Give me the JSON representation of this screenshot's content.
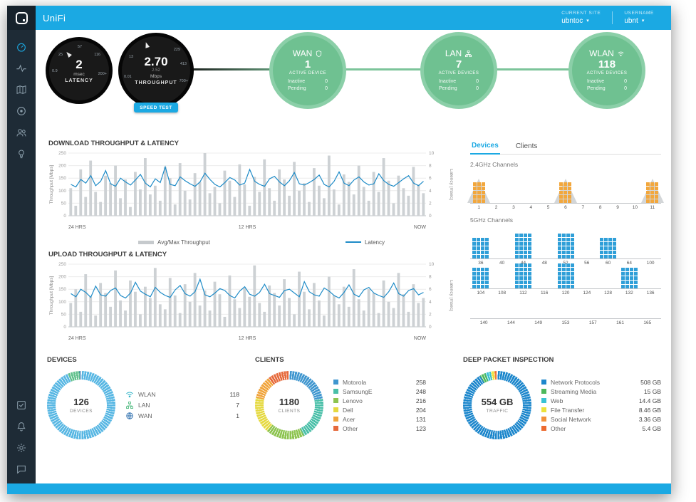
{
  "accent": "#1ba9e3",
  "topbar": {
    "brand": "UniFi",
    "current_site": {
      "label": "CURRENT SITE",
      "value": "ubntoc"
    },
    "username": {
      "label": "USERNAME",
      "value": "ubnt"
    }
  },
  "sidebar": {
    "top_icons": [
      "dashboard",
      "statistics",
      "map",
      "devices",
      "clients",
      "insights"
    ],
    "bottom_icons": [
      "events",
      "alerts",
      "settings",
      "chat"
    ]
  },
  "gauges": {
    "latency": {
      "value": "2",
      "unit": "msec",
      "label": "LATENCY",
      "ticks": [
        "0.9",
        "25",
        "57",
        "116",
        "200+"
      ]
    },
    "throughput": {
      "value": "2.70",
      "secondary": "2.52",
      "unit": "Mbps",
      "label": "THROUGHPUT",
      "ticks": [
        "0.01",
        "13",
        "229",
        "413",
        "700+"
      ],
      "speed_test_label": "SPEED TEST"
    }
  },
  "status_circles": [
    {
      "name": "WAN",
      "icon": "shield-icon",
      "count": "1",
      "count_label": "ACTIVE DEVICE",
      "inactive_label": "Inactive",
      "inactive_value": "0",
      "pending_label": "Pending",
      "pending_value": "0"
    },
    {
      "name": "LAN",
      "icon": "lan-icon",
      "count": "7",
      "count_label": "ACTIVE DEVICES",
      "inactive_label": "Inactive",
      "inactive_value": "0",
      "pending_label": "Pending",
      "pending_value": "0"
    },
    {
      "name": "WLAN",
      "icon": "wifi-icon",
      "count": "118",
      "count_label": "ACTIVE DEVICES",
      "inactive_label": "Inactive",
      "inactive_value": "0",
      "pending_label": "Pending",
      "pending_value": "0"
    }
  ],
  "charts": {
    "download_title": "DOWNLOAD THROUGHPUT & LATENCY",
    "upload_title": "UPLOAD THROUGHPUT & LATENCY",
    "legend": [
      {
        "label": "Avg/Max Throughput",
        "color": "#c6cacd"
      },
      {
        "label": "Latency",
        "color": "#1e8bc7"
      }
    ]
  },
  "chart_data": [
    {
      "type": "line",
      "name": "download",
      "title": "DOWNLOAD THROUGHPUT & LATENCY",
      "xlabel_ticks": [
        "24 HRS",
        "12 HRS",
        "NOW"
      ],
      "ylabel_left": "Throughput [Mbps]",
      "ylabel_right": "Latency [msec]",
      "ylim_left": [
        0,
        250
      ],
      "ylim_right": [
        0,
        10
      ],
      "series": [
        {
          "name": "Avg/Max Throughput",
          "unit": "Mbps",
          "values": [
            110,
            40,
            185,
            75,
            220,
            95,
            55,
            160,
            130,
            200,
            70,
            145,
            35,
            175,
            105,
            230,
            85,
            120,
            60,
            195,
            150,
            45,
            210,
            100,
            65,
            170,
            135,
            250,
            90,
            115,
            50,
            180,
            140,
            75,
            205,
            125,
            40,
            155,
            95,
            225,
            110,
            60,
            185,
            145,
            80,
            215,
            100,
            130,
            55,
            190,
            120,
            70,
            240,
            105,
            45,
            165,
            135,
            85,
            200,
            115,
            60,
            175,
            95,
            230,
            140,
            50,
            160,
            110,
            80,
            195,
            125,
            90
          ]
        },
        {
          "name": "Latency",
          "unit": "msec",
          "values": [
            5.0,
            4.6,
            5.8,
            5.2,
            6.4,
            4.8,
            5.5,
            7.2,
            5.1,
            4.7,
            6.0,
            5.4,
            4.9,
            5.7,
            6.6,
            5.2,
            4.6,
            5.9,
            5.3,
            7.8,
            5.0,
            4.8,
            6.2,
            5.6,
            5.1,
            4.7,
            5.4,
            6.8,
            5.8,
            5.0,
            4.6,
            5.3,
            6.1,
            5.7,
            4.9,
            5.2,
            7.4,
            5.5,
            5.0,
            4.7,
            5.9,
            6.3,
            5.4,
            4.8,
            5.6,
            6.9,
            5.1,
            4.9,
            5.3,
            5.8,
            6.5,
            5.0,
            4.6,
            5.5,
            7.0,
            5.2,
            4.8,
            5.7,
            6.2,
            5.4,
            4.9,
            5.1,
            6.7,
            5.6,
            5.0,
            4.7,
            5.3,
            5.9,
            6.4,
            5.2,
            4.8,
            5.5
          ]
        }
      ]
    },
    {
      "type": "line",
      "name": "upload",
      "title": "UPLOAD THROUGHPUT & LATENCY",
      "xlabel_ticks": [
        "24 HRS",
        "12 HRS",
        "NOW"
      ],
      "ylabel_left": "Throughput [Mbps]",
      "ylabel_right": "Latency [msec]",
      "ylim_left": [
        0,
        250
      ],
      "ylim_right": [
        0,
        10
      ],
      "series": [
        {
          "name": "Avg/Max Throughput",
          "unit": "Mbps",
          "values": [
            95,
            150,
            60,
            210,
            120,
            45,
            175,
            135,
            80,
            225,
            105,
            65,
            185,
            140,
            50,
            160,
            115,
            235,
            90,
            70,
            195,
            125,
            55,
            170,
            100,
            215,
            85,
            145,
            65,
            180,
            130,
            40,
            205,
            110,
            75,
            155,
            120,
            245,
            95,
            60,
            165,
            135,
            85,
            190,
            115,
            50,
            220,
            140,
            70,
            175,
            105,
            45,
            200,
            125,
            90,
            160,
            80,
            230,
            110,
            65,
            150,
            135,
            55,
            185,
            100,
            75,
            215,
            130,
            60,
            170,
            95,
            115
          ]
        },
        {
          "name": "Latency",
          "unit": "msec",
          "values": [
            5.3,
            4.8,
            6.0,
            5.5,
            4.7,
            6.5,
            5.1,
            4.9,
            5.8,
            6.2,
            5.0,
            4.6,
            5.4,
            7.1,
            5.7,
            5.2,
            4.8,
            6.3,
            5.5,
            5.0,
            4.7,
            5.9,
            6.6,
            5.3,
            4.9,
            5.6,
            7.6,
            5.1,
            4.8,
            5.4,
            6.1,
            5.8,
            5.0,
            4.6,
            5.7,
            6.4,
            5.2,
            4.9,
            5.5,
            6.8,
            5.3,
            5.0,
            4.7,
            5.8,
            6.0,
            5.4,
            4.8,
            7.2,
            5.6,
            5.1,
            4.9,
            6.2,
            5.7,
            5.0,
            4.6,
            5.5,
            6.7,
            5.2,
            4.8,
            5.9,
            6.3,
            5.4,
            5.0,
            4.7,
            5.6,
            7.0,
            5.3,
            4.9,
            5.8,
            6.1,
            5.1,
            5.5
          ]
        }
      ]
    }
  ],
  "channels": {
    "tabs": [
      {
        "label": "Devices",
        "active": true
      },
      {
        "label": "Clients",
        "active": false
      }
    ],
    "band24_label": "2.4GHz Channels",
    "band5_label": "5GHz Channels",
    "band24": {
      "color": "#f2a73d",
      "cols": 3,
      "channels": [
        {
          "ch": "1",
          "value": 5,
          "interference": true
        },
        {
          "ch": "2",
          "value": 0
        },
        {
          "ch": "3",
          "value": 0
        },
        {
          "ch": "4",
          "value": 0
        },
        {
          "ch": "5",
          "value": 0
        },
        {
          "ch": "6",
          "value": 5,
          "interference": true
        },
        {
          "ch": "7",
          "value": 0
        },
        {
          "ch": "8",
          "value": 0
        },
        {
          "ch": "9",
          "value": 0
        },
        {
          "ch": "10",
          "value": 0
        },
        {
          "ch": "11",
          "value": 5,
          "interference": true
        }
      ]
    },
    "band5_rows": [
      {
        "color": "#2f9fd8",
        "cols": 4,
        "channels": [
          {
            "ch": "36",
            "value": 5
          },
          {
            "ch": "40",
            "value": 0
          },
          {
            "ch": "44",
            "value": 6
          },
          {
            "ch": "48",
            "value": 0
          },
          {
            "ch": "52",
            "value": 6
          },
          {
            "ch": "56",
            "value": 0
          },
          {
            "ch": "60",
            "value": 5
          },
          {
            "ch": "64",
            "value": 0
          },
          {
            "ch": "100",
            "value": 0
          }
        ]
      },
      {
        "color": "#2f9fd8",
        "cols": 4,
        "channels": [
          {
            "ch": "104",
            "value": 5
          },
          {
            "ch": "108",
            "value": 0
          },
          {
            "ch": "112",
            "value": 6
          },
          {
            "ch": "116",
            "value": 0
          },
          {
            "ch": "120",
            "value": 6
          },
          {
            "ch": "124",
            "value": 0
          },
          {
            "ch": "128",
            "value": 0
          },
          {
            "ch": "132",
            "value": 5
          },
          {
            "ch": "136",
            "value": 0
          }
        ]
      },
      {
        "color": "#2f9fd8",
        "cols": 4,
        "channels": [
          {
            "ch": "140",
            "value": 0
          },
          {
            "ch": "144",
            "value": 0
          },
          {
            "ch": "149",
            "value": 0
          },
          {
            "ch": "153",
            "value": 0
          },
          {
            "ch": "157",
            "value": 0
          },
          {
            "ch": "161",
            "value": 0
          },
          {
            "ch": "165",
            "value": 0
          }
        ]
      }
    ]
  },
  "donuts": {
    "devices": {
      "header": "DEVICES",
      "center_value": "126",
      "center_label": "DEVICES",
      "items": [
        {
          "label": "WLAN",
          "value": 118,
          "value_text": "118",
          "color": "#58b7e3",
          "icon": "wifi-icon"
        },
        {
          "label": "LAN",
          "value": 7,
          "value_text": "7",
          "color": "#63c28e",
          "icon": "lan-icon"
        },
        {
          "label": "WAN",
          "value": 1,
          "value_text": "1",
          "color": "#2d6fae",
          "icon": "wan-icon"
        }
      ]
    },
    "clients": {
      "header": "CLIENTS",
      "center_value": "1180",
      "center_label": "CLIENTS",
      "items": [
        {
          "label": "Motorola",
          "value": 258,
          "value_text": "258",
          "color": "#3f96cf"
        },
        {
          "label": "SamsungE",
          "value": 248,
          "value_text": "248",
          "color": "#49bfa8"
        },
        {
          "label": "Lenovo",
          "value": 216,
          "value_text": "216",
          "color": "#8dc450"
        },
        {
          "label": "Dell",
          "value": 204,
          "value_text": "204",
          "color": "#e5d940"
        },
        {
          "label": "Acer",
          "value": 131,
          "value_text": "131",
          "color": "#f0a43c"
        },
        {
          "label": "Other",
          "value": 123,
          "value_text": "123",
          "color": "#e66a3c"
        }
      ]
    },
    "dpi": {
      "header": "DEEP PACKET INSPECTION",
      "center_value": "554 GB",
      "center_label": "TRAFFIC",
      "items": [
        {
          "label": "Network Protocols",
          "value": 508,
          "value_text": "508 GB",
          "color": "#1d87cc"
        },
        {
          "label": "Streaming Media",
          "value": 15,
          "value_text": "15 GB",
          "color": "#4db85c"
        },
        {
          "label": "Web",
          "value": 14.4,
          "value_text": "14.4 GB",
          "color": "#39c2d4"
        },
        {
          "label": "File Transfer",
          "value": 8.46,
          "value_text": "8.46 GB",
          "color": "#ece23b"
        },
        {
          "label": "Social Network",
          "value": 3.36,
          "value_text": "3.36 GB",
          "color": "#f2913b"
        },
        {
          "label": "Other",
          "value": 5.4,
          "value_text": "5.4 GB",
          "color": "#ec6a2f"
        }
      ]
    }
  }
}
